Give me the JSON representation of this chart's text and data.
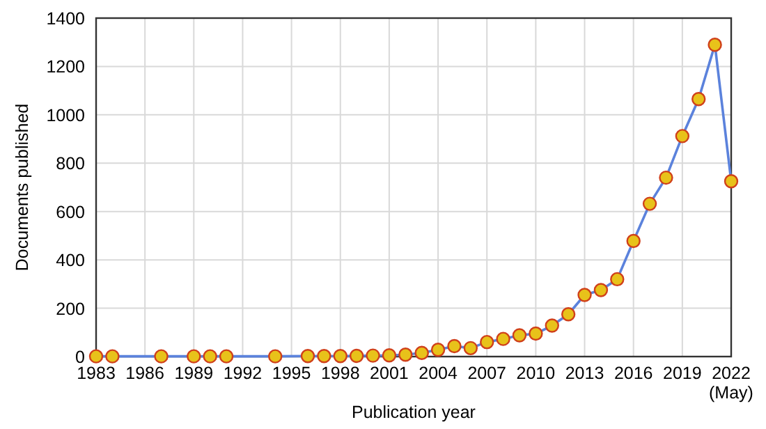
{
  "chart_data": {
    "type": "line",
    "xlabel": "Publication year",
    "ylabel": "Documents published",
    "x": [
      1983,
      1984,
      1987,
      1989,
      1990,
      1991,
      1994,
      1996,
      1997,
      1998,
      1999,
      2000,
      2001,
      2002,
      2003,
      2004,
      2005,
      2006,
      2007,
      2008,
      2009,
      2010,
      2011,
      2012,
      2013,
      2014,
      2015,
      2016,
      2017,
      2018,
      2019,
      2020,
      2021,
      2022
    ],
    "series": [
      {
        "color": "#5b82dc",
        "values": [
          1,
          1,
          1,
          1,
          1,
          1,
          1,
          2,
          2,
          2,
          3,
          4,
          5,
          8,
          15,
          28,
          43,
          35,
          60,
          73,
          88,
          95,
          128,
          175,
          255,
          275,
          320,
          478,
          632,
          740,
          912,
          1065,
          1290,
          725
        ]
      }
    ],
    "xlim": [
      1983,
      2022
    ],
    "xticks": [
      1983,
      1986,
      1989,
      1992,
      1995,
      1998,
      2001,
      2004,
      2007,
      2010,
      2013,
      2016,
      2019,
      {
        "value": 2022,
        "label": "2022\n(May)"
      }
    ],
    "ylim": [
      0,
      1400
    ],
    "yticks": [
      0,
      200,
      400,
      600,
      800,
      1000,
      1200,
      1400
    ],
    "grid": true,
    "marker": "circle",
    "line_style": "solid"
  }
}
